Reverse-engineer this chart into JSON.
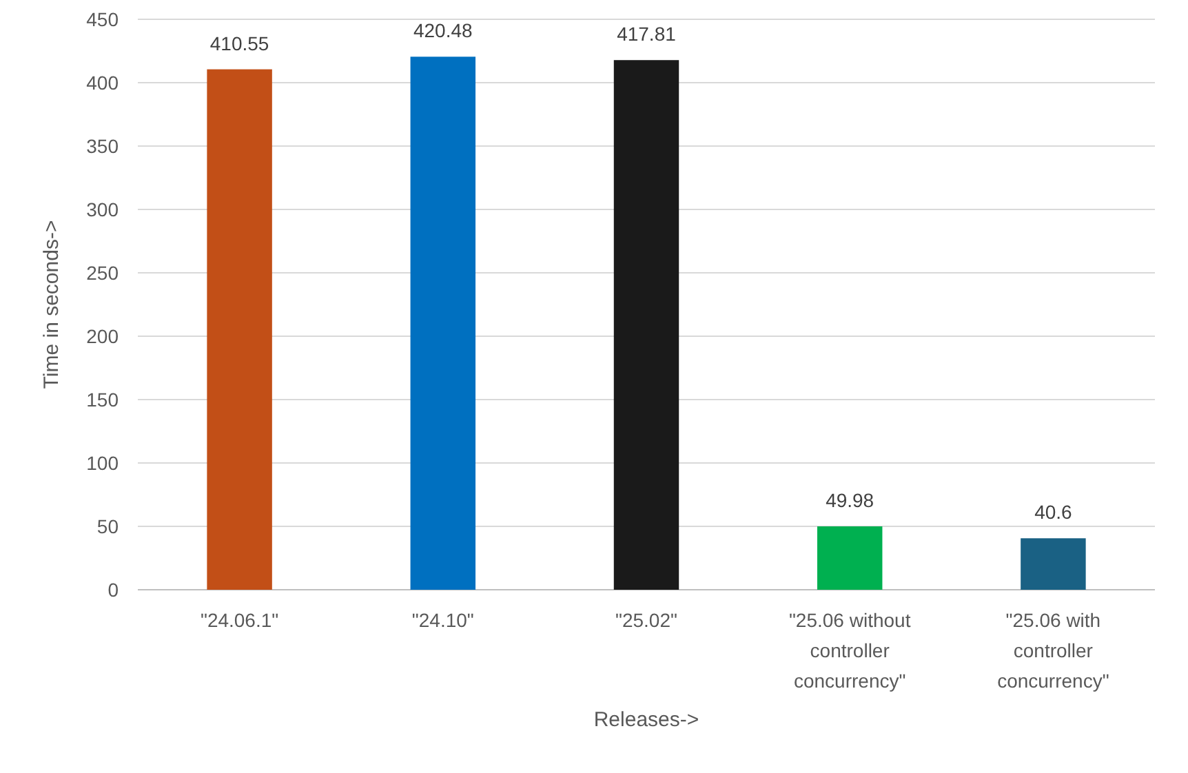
{
  "chart_data": {
    "type": "bar",
    "xlabel": "Releases->",
    "ylabel": "Time in seconds->",
    "categories": [
      "\"24.06.1\"",
      "\"24.10\"",
      "\"25.02\"",
      "\"25.06 without controller concurrency\"",
      "\"25.06 with controller concurrency\""
    ],
    "values": [
      410.55,
      420.48,
      417.81,
      49.98,
      40.6
    ],
    "colors": [
      "#c24f17",
      "#0070c0",
      "#1a1a1a",
      "#00b050",
      "#1a6184"
    ],
    "ylim": [
      0,
      450
    ],
    "yticks": [
      0,
      50,
      100,
      150,
      200,
      250,
      300,
      350,
      400,
      450
    ],
    "grid": "y",
    "data_labels": true
  }
}
